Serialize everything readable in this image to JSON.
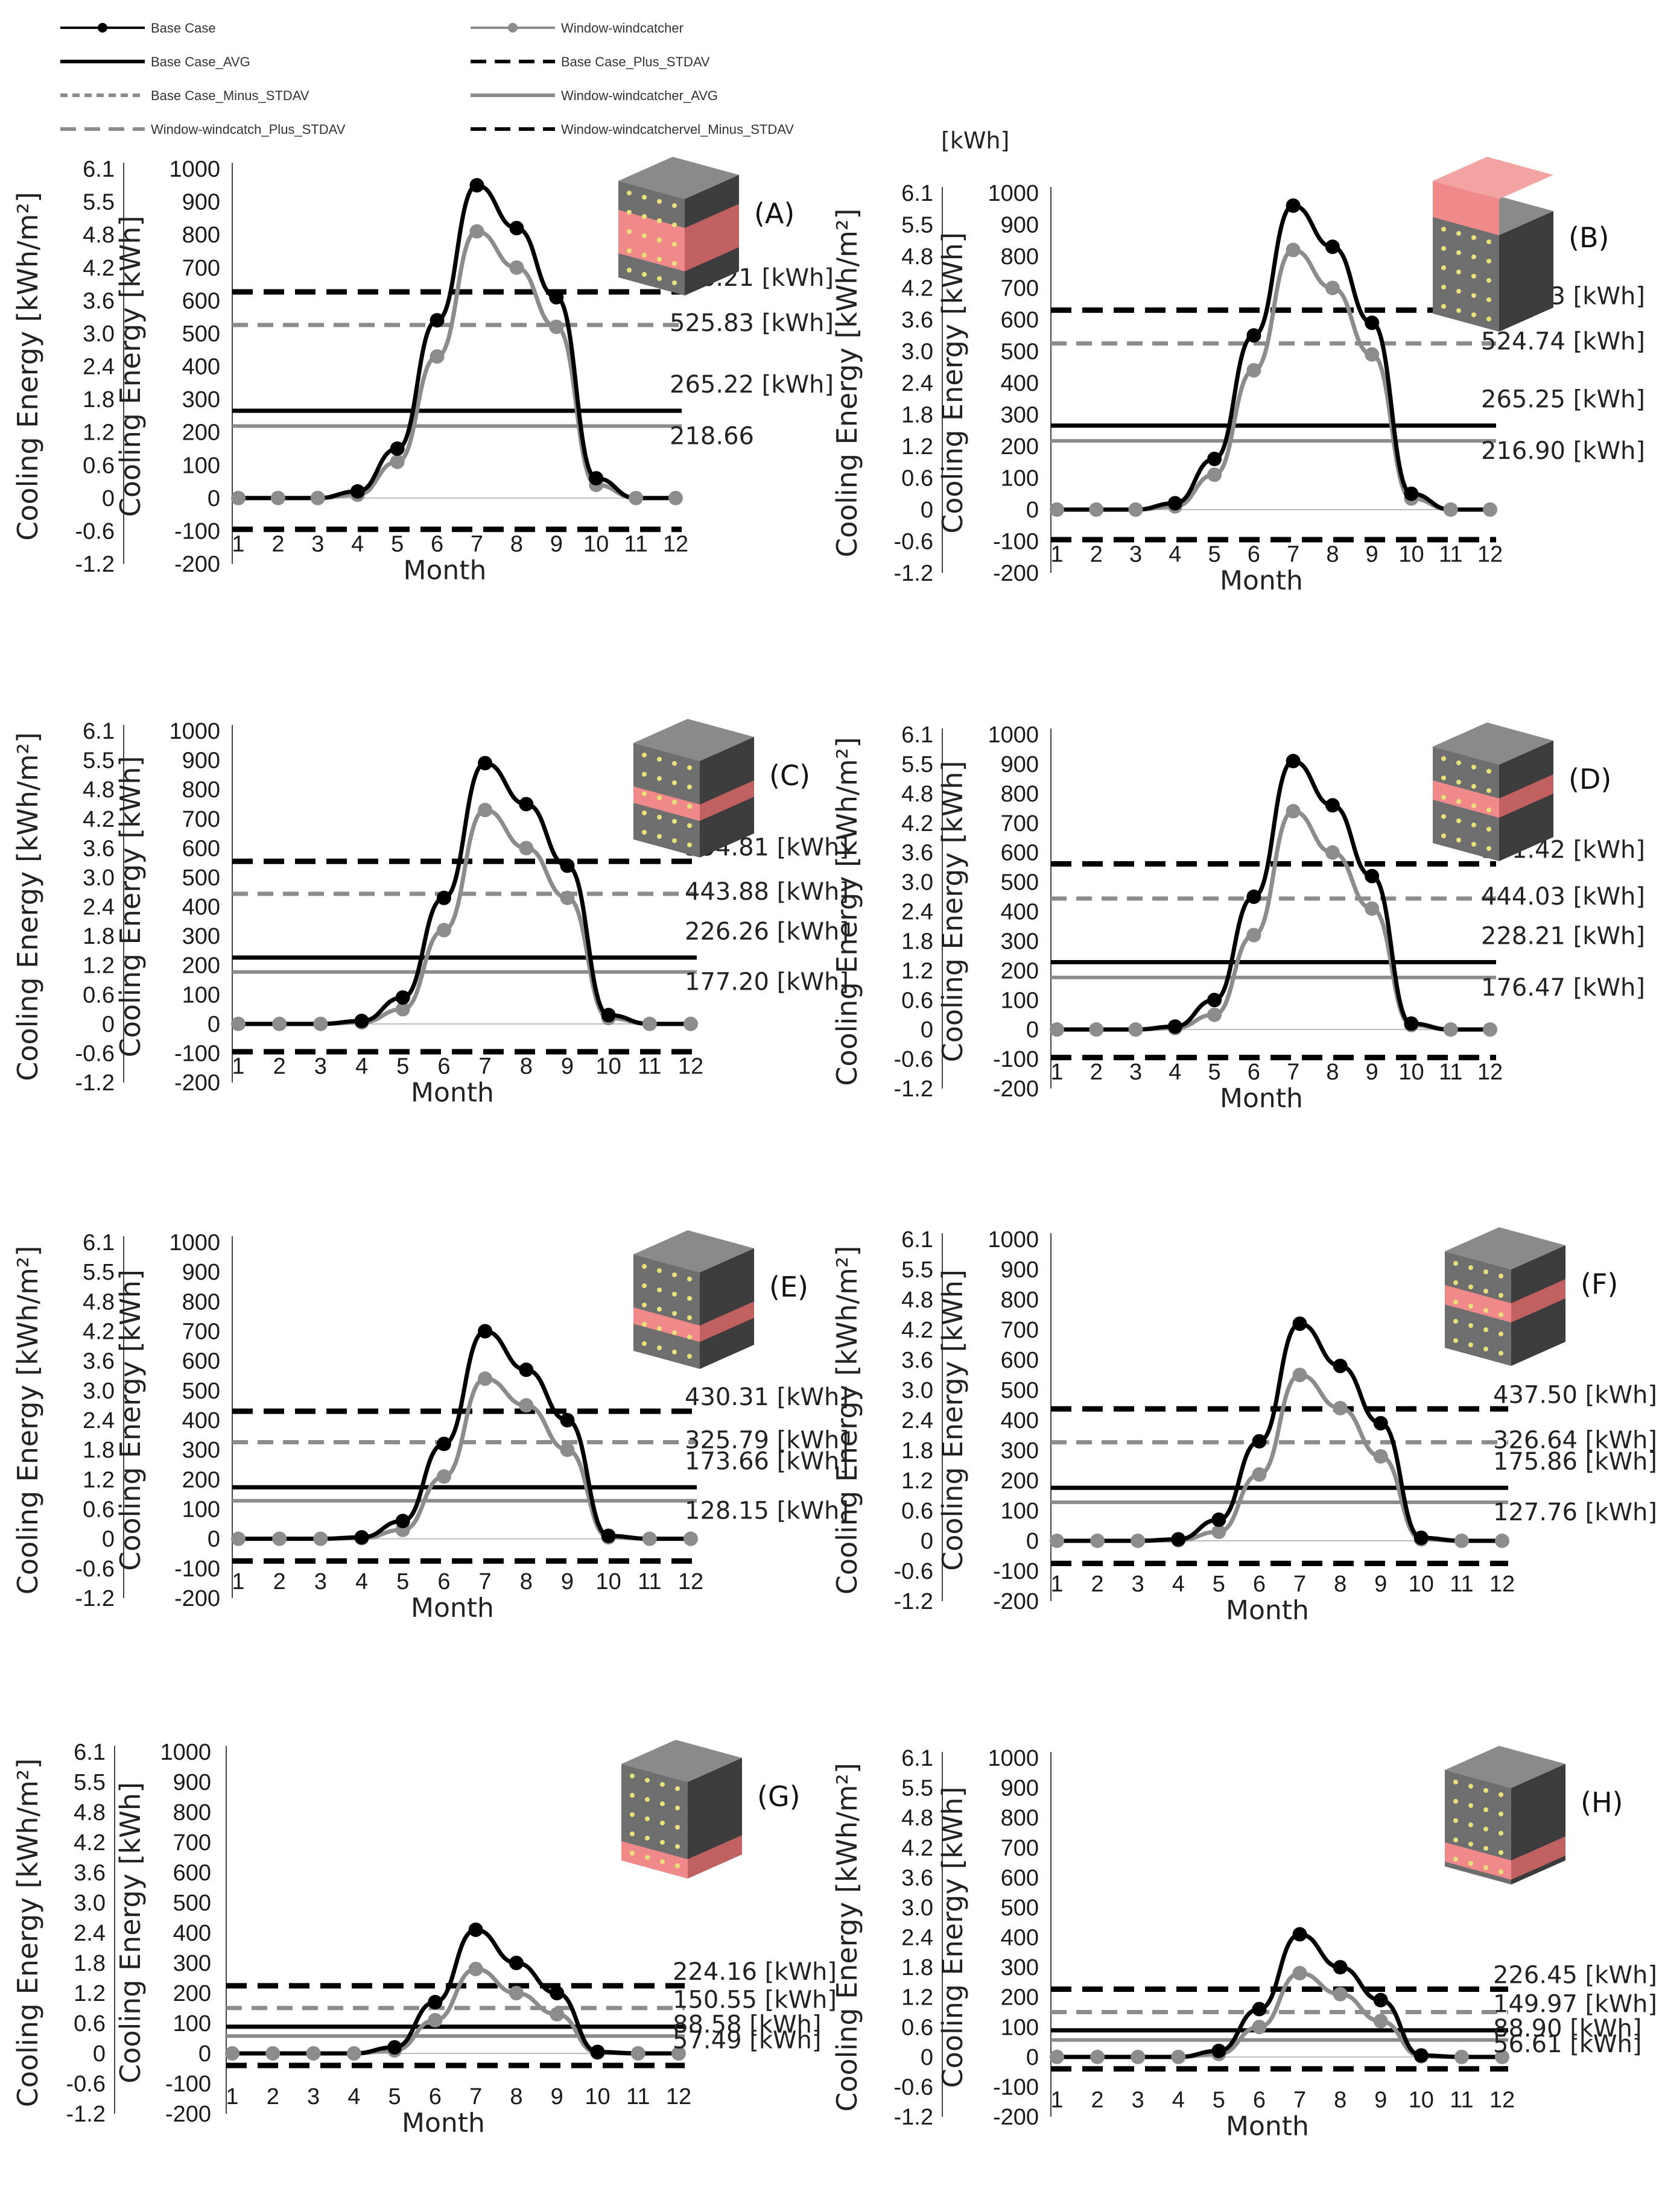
{
  "legend": {
    "items": [
      {
        "label": "Base Case",
        "style": "black-marker"
      },
      {
        "label": "Window-windcatcher",
        "style": "gray-marker"
      },
      {
        "label": "Base Case_AVG",
        "style": "black-solid"
      },
      {
        "label": "Base Case_Plus_STDAV",
        "style": "black-dash"
      },
      {
        "label": "Base Case_Minus_STDAV",
        "style": "gray-shortdash"
      },
      {
        "label": "Window-windcatcher_AVG",
        "style": "gray-solid"
      },
      {
        "label": "Window-windcatch_Plus_STDAV",
        "style": "gray-dash"
      },
      {
        "label": "Window-windcatchervel_Minus_STDAV",
        "style": "black-dash"
      }
    ]
  },
  "top_unit": "[kWh]",
  "colors": {
    "base": "#000000",
    "window": "#8c8c8c",
    "highlight": "#f08a8a",
    "block": "#6e6e6e",
    "block_dark": "#3c3c3c"
  },
  "common": {
    "xlabel": "Month",
    "ylabel_left": "Cooling Energy  [kWh/m²]",
    "ylabel_right": "Cooling Energy [kWh]",
    "x_ticks": [
      "1",
      "2",
      "3",
      "4",
      "5",
      "6",
      "7",
      "8",
      "9",
      "10",
      "11",
      "12"
    ],
    "y_ticks_kwh": [
      "1000",
      "900",
      "800",
      "700",
      "600",
      "500",
      "400",
      "300",
      "200",
      "100",
      "0",
      "-100",
      "-200"
    ],
    "y_ticks_kwhm2": [
      "6.1",
      "5.5",
      "4.8",
      "4.2",
      "3.6",
      "3.0",
      "2.4",
      "1.8",
      "1.2",
      "0.6",
      "0",
      "-0.6",
      "-1.2"
    ]
  },
  "chart_data": [
    {
      "panel": "(A)",
      "type": "line",
      "x": [
        1,
        2,
        3,
        4,
        5,
        6,
        7,
        8,
        9,
        10,
        11,
        12
      ],
      "ylim": [
        -200,
        1000
      ],
      "series": [
        {
          "name": "Base Case",
          "values": [
            0,
            0,
            0,
            20,
            150,
            540,
            950,
            820,
            610,
            60,
            0,
            0
          ]
        },
        {
          "name": "Window-windcatcher",
          "values": [
            0,
            0,
            0,
            10,
            110,
            430,
            810,
            700,
            520,
            40,
            0,
            0
          ]
        }
      ],
      "lines": {
        "base_plus": 626.21,
        "window_plus": 525.83,
        "base_avg": 265.22,
        "window_avg": 218.66,
        "minus": -95
      },
      "annotations": [
        "626.21 [kWh]",
        "525.83 [kWh]",
        "265.22 [kWh]",
        "218.66"
      ]
    },
    {
      "panel": "(B)",
      "type": "line",
      "x": [
        1,
        2,
        3,
        4,
        5,
        6,
        7,
        8,
        9,
        10,
        11,
        12
      ],
      "ylim": [
        -200,
        1000
      ],
      "series": [
        {
          "name": "Base Case",
          "values": [
            0,
            0,
            0,
            20,
            160,
            550,
            960,
            830,
            590,
            50,
            0,
            0
          ]
        },
        {
          "name": "Window-windcatcher",
          "values": [
            0,
            0,
            0,
            10,
            110,
            440,
            820,
            700,
            490,
            35,
            0,
            0
          ]
        }
      ],
      "lines": {
        "base_plus": 629.93,
        "window_plus": 524.74,
        "base_avg": 265.25,
        "window_avg": 216.9,
        "minus": -95
      },
      "annotations": [
        "629.93 [kWh]",
        "524.74 [kWh]",
        "265.25 [kWh]",
        "216.90 [kWh]"
      ]
    },
    {
      "panel": "(C)",
      "type": "line",
      "x": [
        1,
        2,
        3,
        4,
        5,
        6,
        7,
        8,
        9,
        10,
        11,
        12
      ],
      "ylim": [
        -200,
        1000
      ],
      "series": [
        {
          "name": "Base Case",
          "values": [
            0,
            0,
            0,
            10,
            90,
            430,
            890,
            750,
            540,
            30,
            0,
            0
          ]
        },
        {
          "name": "Window-windcatcher",
          "values": [
            0,
            0,
            0,
            5,
            50,
            320,
            730,
            600,
            430,
            20,
            0,
            0
          ]
        }
      ],
      "lines": {
        "base_plus": 554.81,
        "window_plus": 443.88,
        "base_avg": 226.26,
        "window_avg": 177.2,
        "minus": -95
      },
      "annotations": [
        "554.81 [kWh]",
        "443.88 [kWh]",
        "226.26 [kWh]",
        "177.20 [kWh]"
      ]
    },
    {
      "panel": "(D)",
      "type": "line",
      "x": [
        1,
        2,
        3,
        4,
        5,
        6,
        7,
        8,
        9,
        10,
        11,
        12
      ],
      "ylim": [
        -200,
        1000
      ],
      "series": [
        {
          "name": "Base Case",
          "values": [
            0,
            0,
            0,
            10,
            100,
            450,
            910,
            760,
            520,
            20,
            0,
            0
          ]
        },
        {
          "name": "Window-windcatcher",
          "values": [
            0,
            0,
            0,
            5,
            50,
            320,
            740,
            600,
            410,
            15,
            0,
            0
          ]
        }
      ],
      "lines": {
        "base_plus": 561.42,
        "window_plus": 444.03,
        "base_avg": 228.21,
        "window_avg": 176.47,
        "minus": -95
      },
      "annotations": [
        "561.42 [kWh]",
        "444.03 [kWh]",
        "228.21 [kWh]",
        "176.47 [kWh]"
      ]
    },
    {
      "panel": "(E)",
      "type": "line",
      "x": [
        1,
        2,
        3,
        4,
        5,
        6,
        7,
        8,
        9,
        10,
        11,
        12
      ],
      "ylim": [
        -200,
        1000
      ],
      "series": [
        {
          "name": "Base Case",
          "values": [
            0,
            0,
            0,
            5,
            60,
            320,
            700,
            570,
            400,
            10,
            0,
            0
          ]
        },
        {
          "name": "Window-windcatcher",
          "values": [
            0,
            0,
            0,
            2,
            30,
            210,
            540,
            450,
            300,
            5,
            0,
            0
          ]
        }
      ],
      "lines": {
        "base_plus": 430.31,
        "window_plus": 325.79,
        "base_avg": 173.66,
        "window_avg": 128.15,
        "minus": -75
      },
      "annotations": [
        "430.31 [kWh]",
        "325.79 [kWh]",
        "173.66 [kWh]",
        "128.15 [kWh]"
      ]
    },
    {
      "panel": "(F)",
      "type": "line",
      "x": [
        1,
        2,
        3,
        4,
        5,
        6,
        7,
        8,
        9,
        10,
        11,
        12
      ],
      "ylim": [
        -200,
        1000
      ],
      "series": [
        {
          "name": "Base Case",
          "values": [
            0,
            0,
            0,
            5,
            70,
            330,
            720,
            580,
            390,
            10,
            0,
            0
          ]
        },
        {
          "name": "Window-windcatcher",
          "values": [
            0,
            0,
            0,
            2,
            30,
            220,
            550,
            440,
            280,
            5,
            0,
            0
          ]
        }
      ],
      "lines": {
        "base_plus": 437.5,
        "window_plus": 326.64,
        "base_avg": 175.86,
        "window_avg": 127.76,
        "minus": -75
      },
      "annotations": [
        "437.50 [kWh]",
        "326.64 [kWh]",
        "175.86 [kWh]",
        "127.76 [kWh]"
      ]
    },
    {
      "panel": "(G)",
      "type": "line",
      "x": [
        1,
        2,
        3,
        4,
        5,
        6,
        7,
        8,
        9,
        10,
        11,
        12
      ],
      "ylim": [
        -200,
        1000
      ],
      "series": [
        {
          "name": "Base Case",
          "values": [
            0,
            0,
            0,
            0,
            20,
            170,
            410,
            300,
            200,
            5,
            0,
            0
          ]
        },
        {
          "name": "Window-windcatcher",
          "values": [
            0,
            0,
            0,
            0,
            10,
            110,
            280,
            200,
            130,
            2,
            0,
            0
          ]
        }
      ],
      "lines": {
        "base_plus": 224.16,
        "window_plus": 150.55,
        "base_avg": 88.58,
        "window_avg": 57.49,
        "minus": -40
      },
      "annotations": [
        "224.16 [kWh]",
        "150.55 [kWh]",
        "88.58 [kWh]",
        "57.49 [kWh]"
      ]
    },
    {
      "panel": "(H)",
      "type": "line",
      "x": [
        1,
        2,
        3,
        4,
        5,
        6,
        7,
        8,
        9,
        10,
        11,
        12
      ],
      "ylim": [
        -200,
        1000
      ],
      "series": [
        {
          "name": "Base Case",
          "values": [
            0,
            0,
            0,
            0,
            20,
            160,
            410,
            300,
            190,
            5,
            0,
            0
          ]
        },
        {
          "name": "Window-windcatcher",
          "values": [
            0,
            0,
            0,
            0,
            10,
            100,
            280,
            210,
            120,
            2,
            0,
            0
          ]
        }
      ],
      "lines": {
        "base_plus": 226.45,
        "window_plus": 149.97,
        "base_avg": 88.9,
        "window_avg": 56.61,
        "minus": -40
      },
      "annotations": [
        "226.45 [kWh]",
        "149.97 [kWh]",
        "88.90 [kWh]",
        "56.61 [kWh]"
      ]
    }
  ]
}
